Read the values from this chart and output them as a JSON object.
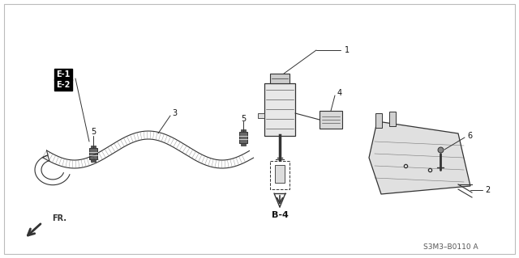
{
  "bg_color": "#ffffff",
  "line_color": "#333333",
  "text_color": "#111111",
  "part_number": "S3M3–B0110 A",
  "figsize": [
    6.4,
    3.19
  ],
  "dpi": 100,
  "labels": {
    "E1": "E-1",
    "E2": "E-2",
    "n1": "1",
    "n2": "2",
    "n3": "3",
    "n4": "4",
    "n5": "5",
    "n6": "6",
    "b4": "B-4",
    "fr": "FR."
  }
}
